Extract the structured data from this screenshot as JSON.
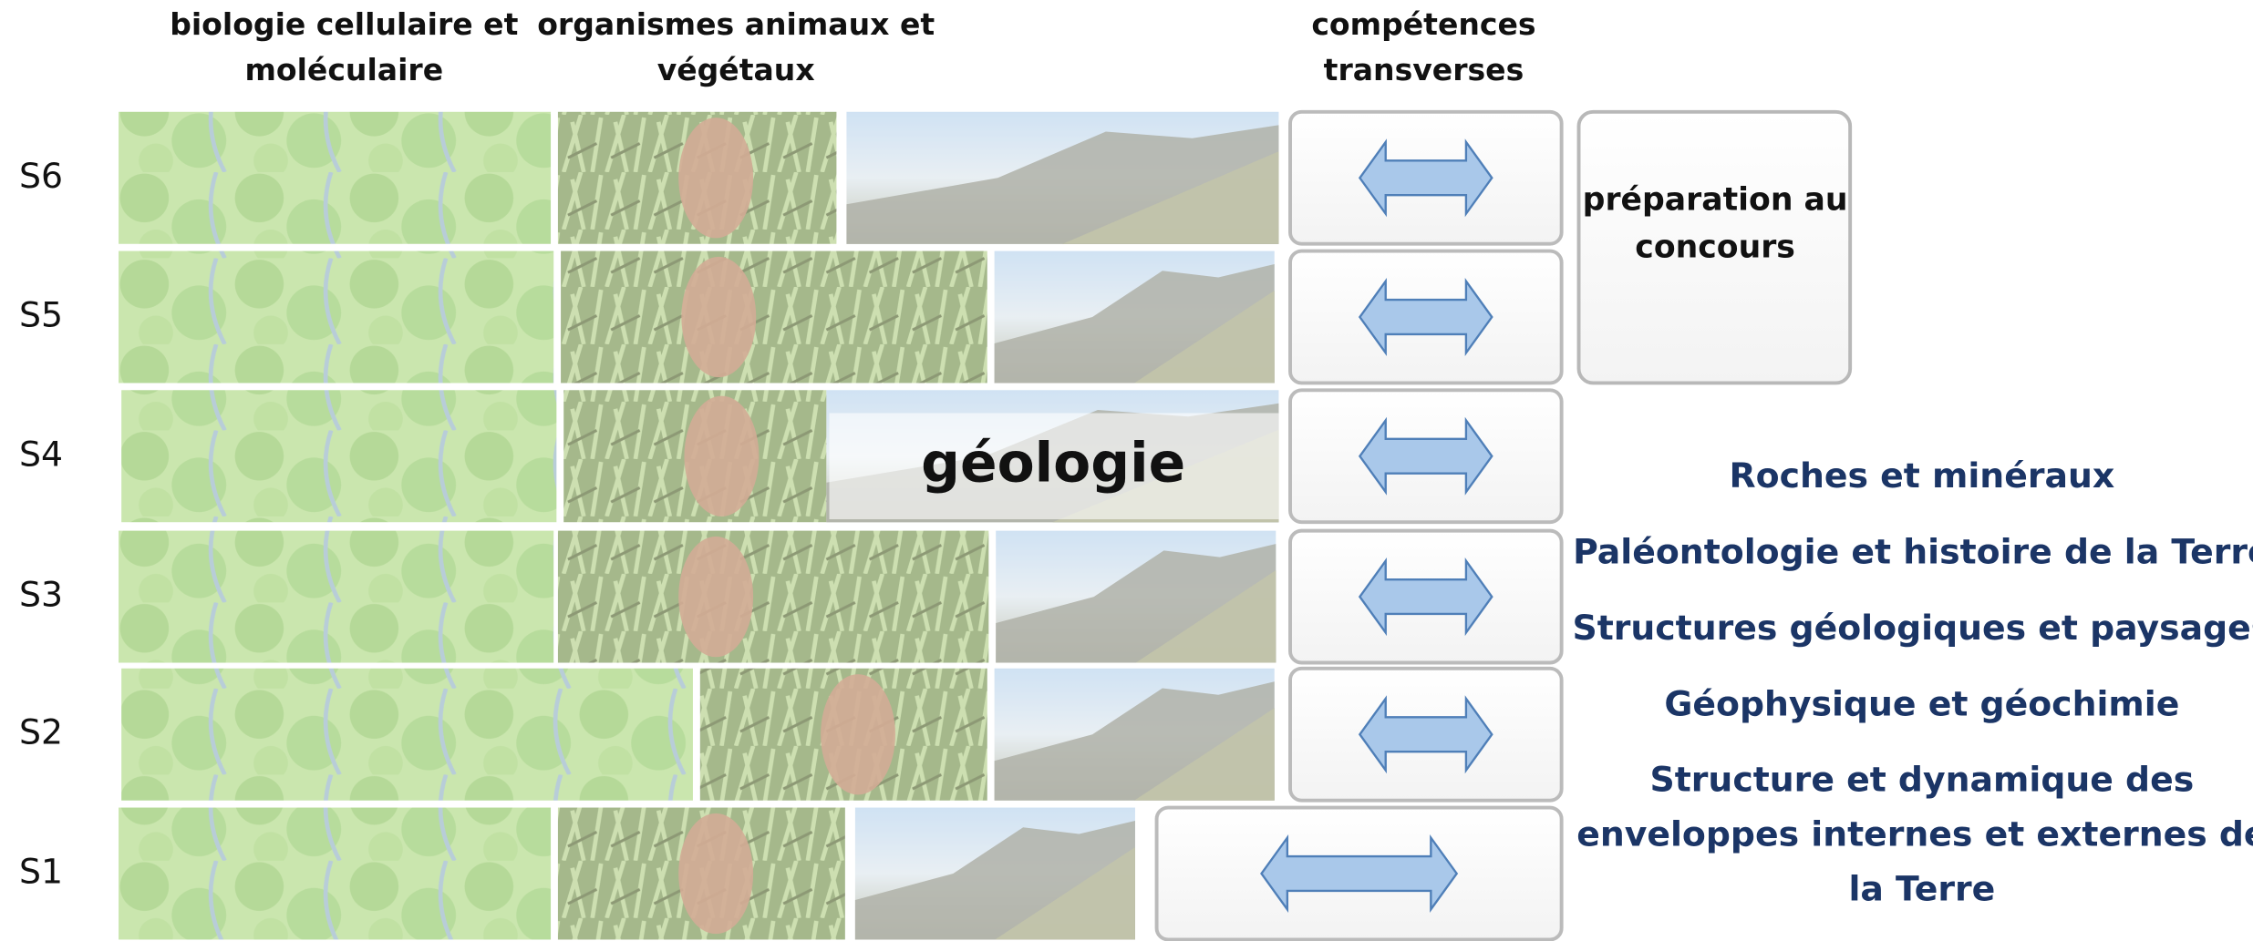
{
  "headers": [
    {
      "lines": [
        "biologie cellulaire et",
        "moléculaire"
      ]
    },
    {
      "lines": [
        "organismes animaux et",
        "végétaux"
      ]
    },
    {
      "lines": [
        "compétences",
        "transverses"
      ]
    }
  ],
  "rows": [
    {
      "label": "S6"
    },
    {
      "label": "S5"
    },
    {
      "label": "S4"
    },
    {
      "label": "S3"
    },
    {
      "label": "S2"
    },
    {
      "label": "S1"
    }
  ],
  "geology_label": "géologie",
  "preparation": {
    "lines": [
      "préparation au",
      "concours"
    ]
  },
  "topics": [
    {
      "lines": [
        "Roches et minéraux"
      ]
    },
    {
      "lines": [
        "Paléontologie et histoire de la Terre"
      ]
    },
    {
      "lines": [
        "Structures géologiques et paysages"
      ]
    },
    {
      "lines": [
        "Géophysique et géochimie"
      ]
    },
    {
      "lines": [
        "Structure et dynamique des",
        "enveloppes internes et externes de",
        "la Terre"
      ]
    }
  ]
}
